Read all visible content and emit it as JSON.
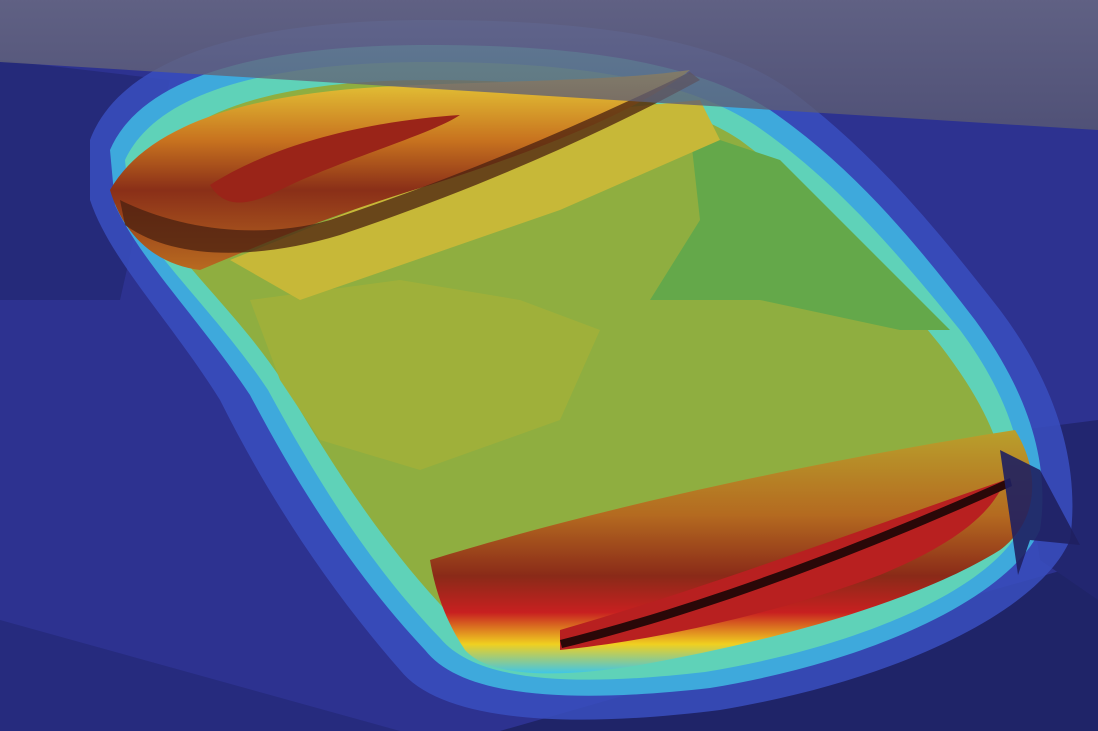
{
  "viewport": {
    "kind": "fem-contour-plot",
    "background_color": "#2d3290",
    "colormap": "jet",
    "colormap_stops": [
      "#1f2070",
      "#2f3aa8",
      "#2f6fd0",
      "#3fc6e8",
      "#6fe0b0",
      "#d8e83a",
      "#f0c020",
      "#e07a20",
      "#c82020",
      "#6a1010"
    ],
    "field_colors": {
      "low": "#2d3290",
      "mid": "#8fb040",
      "high": "#c82020",
      "peak": "#3a0c0c"
    },
    "overlay_plate_color": "#6b6b7c"
  }
}
